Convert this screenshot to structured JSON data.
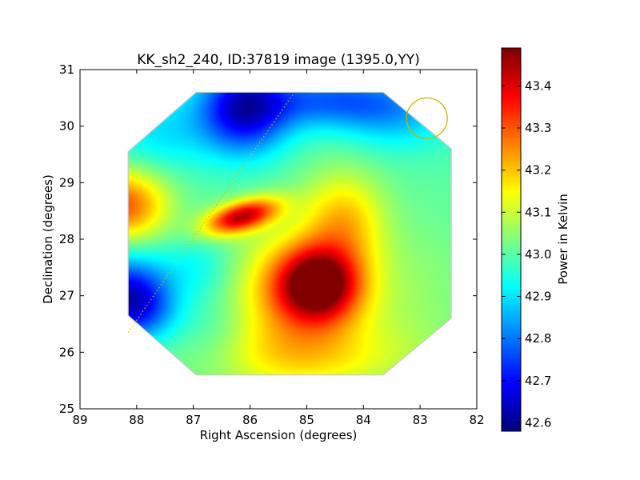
{
  "chart_data": {
    "type": "heatmap",
    "title": "KK_sh2_240, ID:37819 image (1395.0,YY)",
    "xlabel": "Right Ascension (degrees)",
    "ylabel": "Declination (degrees)",
    "xlim": [
      89,
      82
    ],
    "ylim": [
      25,
      31
    ],
    "x_ticks": [
      89,
      88,
      87,
      86,
      85,
      84,
      83,
      82
    ],
    "y_ticks": [
      25,
      26,
      27,
      28,
      29,
      30,
      31
    ],
    "x_tick_labels": [
      "89",
      "88",
      "87",
      "86",
      "85",
      "84",
      "83",
      "82"
    ],
    "y_tick_labels": [
      "25",
      "26",
      "27",
      "28",
      "29",
      "30",
      "31"
    ],
    "colorbar": {
      "label": "Power in Kelvin",
      "colormap": "jet",
      "range": [
        42.58,
        43.49
      ],
      "ticks": [
        42.6,
        42.7,
        42.8,
        42.9,
        43.0,
        43.1,
        43.2,
        43.3,
        43.4
      ],
      "tick_labels": [
        "42.6",
        "42.7",
        "42.8",
        "42.9",
        "43.0",
        "43.1",
        "43.2",
        "43.3",
        "43.4"
      ]
    },
    "map_outline": [
      [
        88.15,
        29.55
      ],
      [
        86.95,
        30.6
      ],
      [
        83.65,
        30.6
      ],
      [
        82.45,
        29.6
      ],
      [
        82.45,
        26.6
      ],
      [
        83.65,
        25.6
      ],
      [
        86.95,
        25.6
      ],
      [
        88.15,
        26.65
      ]
    ],
    "blobs": [
      {
        "x": 84.8,
        "y": 27.2,
        "amp": 0.45,
        "sx": 0.5,
        "sy": 0.45
      },
      {
        "x": 85.2,
        "y": 27.0,
        "amp": 0.2,
        "sx": 0.95,
        "sy": 0.85
      },
      {
        "x": 86.15,
        "y": 28.4,
        "amp": 0.42,
        "sx": 0.45,
        "sy": 0.22,
        "rho": -0.5
      },
      {
        "x": 88.25,
        "y": 28.6,
        "amp": 0.3,
        "sx": 0.55,
        "sy": 0.45
      },
      {
        "x": 84.35,
        "y": 28.35,
        "amp": 0.18,
        "sx": 0.5,
        "sy": 0.6
      },
      {
        "x": 85.0,
        "y": 25.9,
        "amp": 0.12,
        "sx": 1.4,
        "sy": 0.45
      },
      {
        "x": 83.0,
        "y": 27.0,
        "amp": 0.04,
        "sx": 0.8,
        "sy": 1.0
      },
      {
        "x": 86.1,
        "y": 30.3,
        "amp": -0.35,
        "sx": 0.55,
        "sy": 0.55
      },
      {
        "x": 84.6,
        "y": 30.45,
        "amp": -0.2,
        "sx": 0.9,
        "sy": 0.35
      },
      {
        "x": 83.4,
        "y": 30.2,
        "amp": -0.12,
        "sx": 0.7,
        "sy": 0.45
      },
      {
        "x": 88.2,
        "y": 27.0,
        "amp": -0.3,
        "sx": 0.5,
        "sy": 0.5
      },
      {
        "x": 87.85,
        "y": 26.75,
        "amp": -0.12,
        "sx": 0.45,
        "sy": 0.4
      },
      {
        "x": 86.9,
        "y": 27.5,
        "amp": -0.09,
        "sx": 0.5,
        "sy": 0.4
      },
      {
        "x": 87.6,
        "y": 29.9,
        "amp": -0.1,
        "sx": 0.7,
        "sy": 0.5
      },
      {
        "x": 86.6,
        "y": 26.4,
        "amp": -0.06,
        "sx": 0.5,
        "sy": 0.5
      }
    ],
    "base_level": 43.0,
    "overlays": {
      "dotted_line": {
        "from": [
          88.15,
          26.35
        ],
        "to": [
          85.25,
          30.55
        ],
        "color": "#d4c200"
      },
      "beam_circle": {
        "x": 82.88,
        "y": 30.14,
        "radius_deg": 0.36,
        "color": "#c8b400"
      }
    }
  }
}
